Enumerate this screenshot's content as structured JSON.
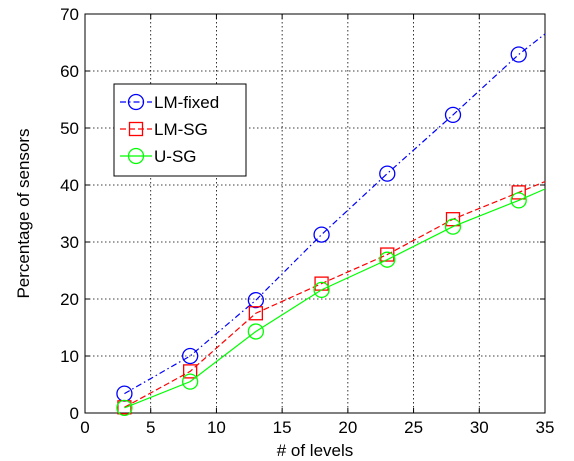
{
  "chart_data": {
    "type": "line",
    "title": "",
    "xlabel": "# of levels",
    "ylabel": "Percentage of sensors",
    "xlim": [
      0,
      35
    ],
    "ylim": [
      0,
      70
    ],
    "xticks": [
      0,
      5,
      10,
      15,
      20,
      25,
      30,
      35
    ],
    "yticks": [
      0,
      10,
      20,
      30,
      40,
      50,
      60,
      70
    ],
    "grid": true,
    "legend_position": "upper-left",
    "series": [
      {
        "name": "LM-fixed",
        "color": "#0000ff",
        "line_style": "dash-dot",
        "marker": "circle",
        "marker_x": [
          3,
          8,
          13,
          18,
          23,
          28,
          33
        ],
        "marker_y": [
          3.4,
          10.0,
          19.8,
          31.3,
          42.0,
          52.3,
          62.9
        ],
        "x": [
          3,
          8,
          13,
          18,
          23,
          28,
          33,
          35
        ],
        "y": [
          3.4,
          10.0,
          19.8,
          31.3,
          42.0,
          52.3,
          62.9,
          66.5
        ]
      },
      {
        "name": "LM-SG",
        "color": "#ff0000",
        "line_style": "dashed",
        "marker": "square",
        "marker_x": [
          3,
          8,
          13,
          18,
          23,
          28,
          33
        ],
        "marker_y": [
          1.0,
          7.3,
          17.5,
          22.7,
          27.8,
          34.0,
          38.7
        ],
        "x": [
          3,
          8,
          13,
          18,
          23,
          28,
          33,
          35
        ],
        "y": [
          1.0,
          7.3,
          17.5,
          22.7,
          27.8,
          34.0,
          38.7,
          40.6
        ]
      },
      {
        "name": "U-SG",
        "color": "#00ff00",
        "line_style": "solid",
        "marker": "circle",
        "marker_x": [
          3,
          8,
          13,
          18,
          23,
          28,
          33
        ],
        "marker_y": [
          0.9,
          5.5,
          14.3,
          21.6,
          26.9,
          32.7,
          37.3
        ],
        "x": [
          3,
          8,
          13,
          18,
          23,
          28,
          33,
          35
        ],
        "y": [
          0.9,
          5.5,
          14.3,
          21.6,
          26.9,
          32.7,
          37.3,
          39.3
        ]
      }
    ]
  }
}
